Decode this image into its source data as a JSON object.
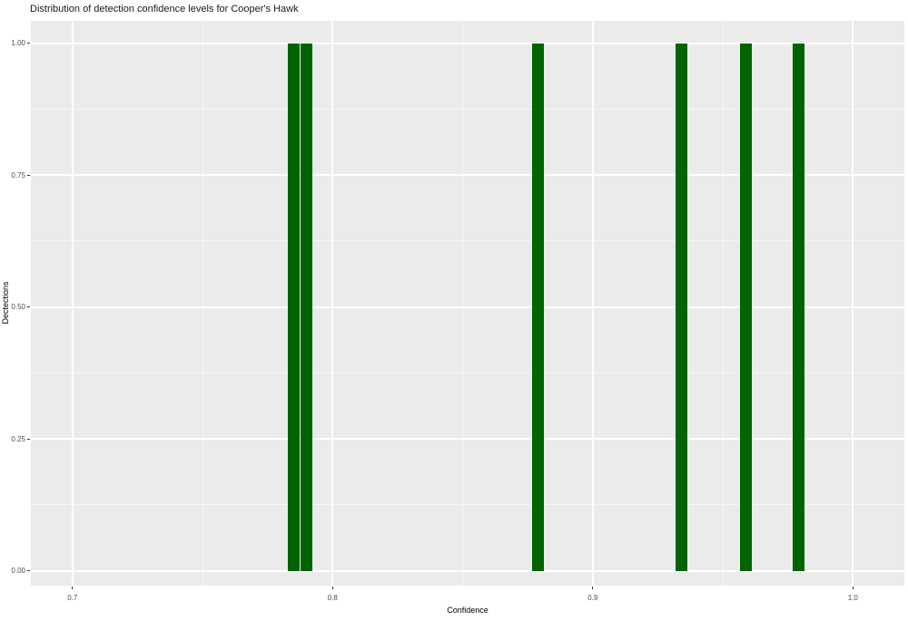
{
  "title": "Distribution of detection confidence levels for Cooper's Hawk",
  "colors": {
    "page_background": "#FFFFFF",
    "panel_background": "#EBEBEB",
    "grid_major": "#FFFFFF",
    "grid_minor": "#F6F6F6",
    "bar_fill": "#006400",
    "axis_text": "#4D4D4D",
    "tick_mark": "#333333",
    "title_text": "#1A1A1A",
    "axis_title_text": "#000000"
  },
  "chart_data": {
    "type": "bar",
    "subtype": "histogram",
    "title": "Distribution of detection confidence levels for Cooper's Hawk",
    "xlabel": "Confidence",
    "ylabel": "Dectections",
    "legend": false,
    "grid": true,
    "panel_background": "#EBEBEB",
    "bar_color": "#006400",
    "bar_width": 0.0045,
    "x_axis": {
      "range": [
        0.684,
        1.0198
      ],
      "ticks": [
        0.7,
        0.8,
        0.9,
        1.0
      ],
      "tick_labels": [
        "0.7",
        "0.8",
        "0.9",
        "1.0"
      ],
      "minor_ticks": [
        0.75,
        0.85,
        0.95
      ]
    },
    "y_axis": {
      "range": [
        -0.0284,
        1.0421
      ],
      "ticks": [
        0.0,
        0.25,
        0.5,
        0.75,
        1.0
      ],
      "tick_labels": [
        "0.00",
        "0.25",
        "0.50",
        "0.75",
        "1.00"
      ],
      "minor_ticks": [
        0.125,
        0.375,
        0.625,
        0.875
      ]
    },
    "bars": [
      {
        "confidence": 0.785,
        "detections": 1
      },
      {
        "confidence": 0.79,
        "detections": 1
      },
      {
        "confidence": 0.879,
        "detections": 1
      },
      {
        "confidence": 0.934,
        "detections": 1
      },
      {
        "confidence": 0.959,
        "detections": 1
      },
      {
        "confidence": 0.979,
        "detections": 1
      }
    ]
  }
}
